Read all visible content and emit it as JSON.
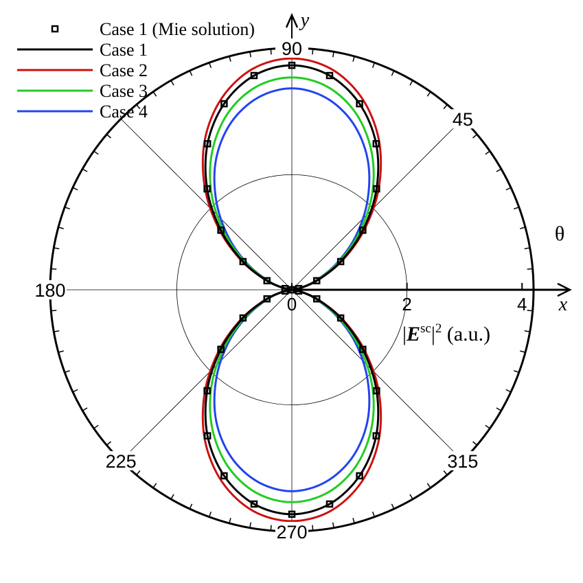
{
  "chart_data": {
    "type": "polar",
    "theta": [
      0,
      10,
      20,
      30,
      40,
      50,
      60,
      70,
      80,
      90,
      100,
      110,
      120,
      130,
      140,
      150,
      160,
      170,
      180,
      190,
      200,
      210,
      220,
      230,
      240,
      250,
      260,
      270,
      280,
      290,
      300,
      310,
      320,
      330,
      340,
      350,
      360
    ],
    "series": [
      {
        "name": "Case 1 (Mie solution)",
        "color": "#000000",
        "style": "markers",
        "values": [
          0,
          0.12,
          0.46,
          0.98,
          1.61,
          2.29,
          2.93,
          3.44,
          3.78,
          3.9,
          3.78,
          3.44,
          2.93,
          2.29,
          1.61,
          0.98,
          0.46,
          0.12,
          0,
          0.12,
          0.46,
          0.98,
          1.61,
          2.29,
          2.93,
          3.44,
          3.78,
          3.9,
          3.78,
          3.44,
          2.93,
          2.29,
          1.61,
          0.98,
          0.46,
          0.12,
          0
        ]
      },
      {
        "name": "Case 1",
        "color": "#000000",
        "style": "line",
        "values": [
          0,
          0.12,
          0.46,
          0.98,
          1.61,
          2.29,
          2.93,
          3.44,
          3.78,
          3.9,
          3.78,
          3.44,
          2.93,
          2.29,
          1.61,
          0.98,
          0.46,
          0.12,
          0,
          0.12,
          0.46,
          0.98,
          1.61,
          2.29,
          2.93,
          3.44,
          3.78,
          3.9,
          3.78,
          3.44,
          2.93,
          2.29,
          1.61,
          0.98,
          0.46,
          0.12,
          0
        ]
      },
      {
        "name": "Case 2",
        "color": "#cc1111",
        "style": "line",
        "values": [
          0,
          0.12,
          0.47,
          1.01,
          1.66,
          2.36,
          3.02,
          3.55,
          3.9,
          4.02,
          3.9,
          3.55,
          3.02,
          2.36,
          1.66,
          1.01,
          0.47,
          0.12,
          0,
          0.12,
          0.47,
          1.01,
          1.66,
          2.36,
          3.02,
          3.55,
          3.9,
          4.02,
          3.9,
          3.55,
          3.02,
          2.36,
          1.66,
          1.01,
          0.47,
          0.12,
          0
        ]
      },
      {
        "name": "Case 3",
        "color": "#22cc22",
        "style": "line",
        "values": [
          0,
          0.11,
          0.43,
          0.92,
          1.52,
          2.17,
          2.77,
          3.26,
          3.58,
          3.69,
          3.58,
          3.26,
          2.77,
          2.17,
          1.52,
          0.92,
          0.43,
          0.11,
          0,
          0.11,
          0.43,
          0.92,
          1.52,
          2.17,
          2.77,
          3.26,
          3.58,
          3.69,
          3.58,
          3.26,
          2.77,
          2.17,
          1.52,
          0.92,
          0.43,
          0.11,
          0
        ]
      },
      {
        "name": "Case 4",
        "color": "#2244ee",
        "style": "line",
        "values": [
          0,
          0.11,
          0.41,
          0.88,
          1.45,
          2.05,
          2.63,
          3.09,
          3.39,
          3.5,
          3.39,
          3.09,
          2.63,
          2.05,
          1.45,
          0.88,
          0.41,
          0.11,
          0,
          0.11,
          0.41,
          0.88,
          1.45,
          2.05,
          2.63,
          3.09,
          3.39,
          3.5,
          3.39,
          3.09,
          2.63,
          2.05,
          1.45,
          0.88,
          0.41,
          0.11,
          0
        ]
      }
    ],
    "rlim": [
      0,
      4.2
    ],
    "rticks": [
      0,
      2,
      4
    ],
    "grid_circles": [
      2
    ],
    "thetaticks": [
      {
        "value": 0,
        "label": null
      },
      45,
      90,
      {
        "value": 135,
        "label": null
      },
      180,
      225,
      270,
      315
    ],
    "r_label": [
      "|",
      "E",
      "sc",
      "|",
      "2",
      " (a.u.)"
    ],
    "theta_label": "θ",
    "x_label": "x",
    "y_label": "y",
    "legend": "upper left"
  }
}
